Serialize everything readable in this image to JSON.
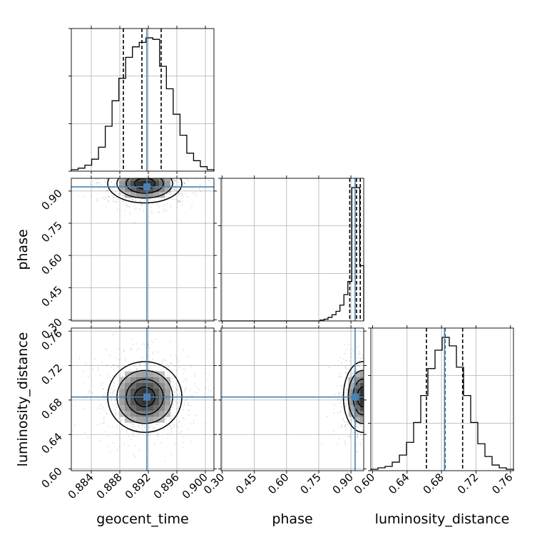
{
  "chart_data": {
    "type": "corner",
    "parameters": [
      "geocent_time",
      "phase",
      "luminosity_distance"
    ],
    "truth_values": {
      "geocent_time": 0.8918,
      "phase": 0.9195,
      "luminosity_distance": 0.6835
    },
    "truth_color": "#4682b4",
    "grid": true,
    "axes": {
      "geocent_time": {
        "range": [
          0.8812,
          0.9012
        ],
        "ticks": [
          "0.884",
          "0.888",
          "0.892",
          "0.896",
          "0.900"
        ]
      },
      "phase": {
        "range": [
          0.295,
          0.9595
        ],
        "ticks": [
          "0.30",
          "0.45",
          "0.60",
          "0.75",
          "0.90"
        ]
      },
      "luminosity_distance": {
        "range": [
          0.598,
          0.7635
        ],
        "ticks": [
          "0.60",
          "0.64",
          "0.68",
          "0.72",
          "0.76"
        ]
      }
    },
    "histograms": {
      "geocent_time": {
        "bin_edges_range": [
          0.8812,
          0.9012
        ],
        "counts": [
          1,
          2,
          4,
          8,
          16,
          30,
          47,
          62,
          76,
          83,
          86,
          89,
          88,
          70,
          55,
          38,
          24,
          12,
          7,
          3,
          1
        ],
        "quantiles": [
          0.8885,
          0.8911,
          0.8938
        ]
      },
      "phase": {
        "bin_edges_range": [
          0.295,
          0.9595
        ],
        "counts": [
          0,
          0,
          0,
          0,
          0,
          0,
          0,
          0,
          0,
          0,
          0,
          0,
          0,
          0,
          0,
          0,
          0,
          0,
          0,
          0,
          0,
          0,
          0,
          0,
          0,
          1,
          2,
          4,
          7,
          11,
          18,
          30,
          45,
          152,
          152,
          63
        ],
        "quantiles": [
          0.8945,
          0.926,
          0.9435
        ]
      },
      "luminosity_distance": {
        "bin_edges_range": [
          0.598,
          0.7635
        ],
        "counts": [
          1,
          2,
          3,
          6,
          11,
          20,
          34,
          53,
          72,
          85,
          94,
          88,
          73,
          53,
          34,
          19,
          10,
          4,
          2,
          1
        ],
        "quantiles": [
          0.6625,
          0.684,
          0.7045
        ]
      }
    },
    "panels_2d": [
      {
        "x": "geocent_time",
        "y": "phase",
        "center": [
          0.8915,
          0.935
        ],
        "spread": [
          0.0026,
          0.045
        ]
      },
      {
        "x": "geocent_time",
        "y": "luminosity_distance",
        "center": [
          0.8915,
          0.6835
        ],
        "spread": [
          0.0026,
          0.0205
        ]
      },
      {
        "x": "phase",
        "y": "luminosity_distance",
        "center": [
          0.955,
          0.6835
        ],
        "spread": [
          0.045,
          0.0205
        ]
      }
    ]
  }
}
